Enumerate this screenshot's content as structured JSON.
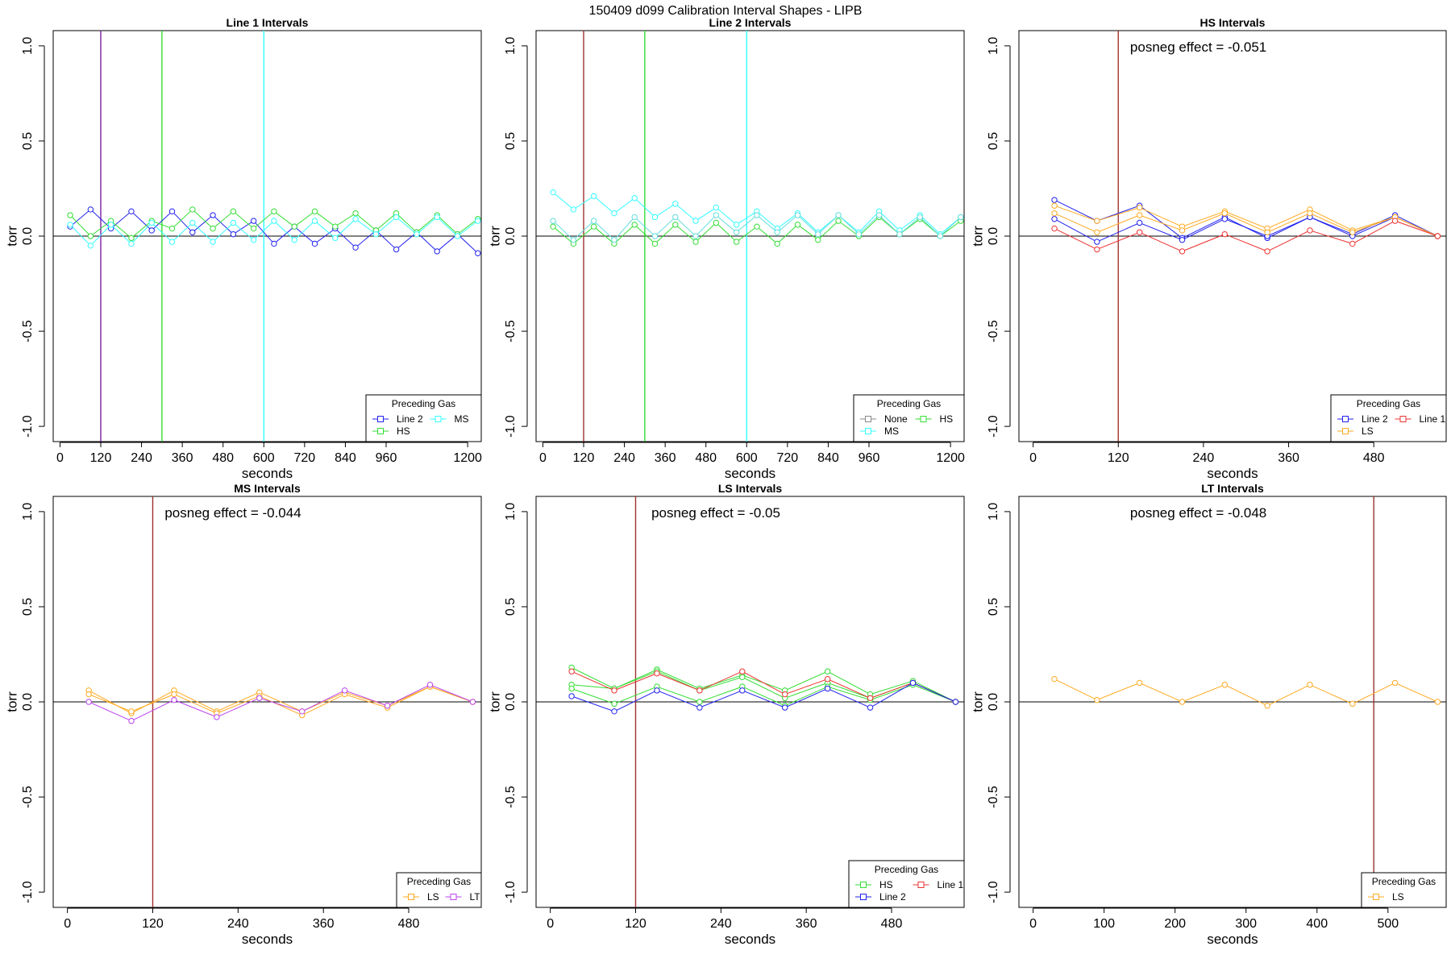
{
  "figure_title": "150409   d099   Calibration Interval Shapes - LIPB",
  "chart_data": [
    {
      "type": "line",
      "title": "Line 1 Intervals",
      "xlabel": "seconds",
      "ylabel": "torr",
      "xlim": [
        -20,
        1240
      ],
      "ylim": [
        -1.08,
        1.08
      ],
      "xticks": [
        0,
        120,
        240,
        360,
        480,
        600,
        720,
        840,
        960,
        1200
      ],
      "yticks": [
        -1.0,
        -0.5,
        0.0,
        0.5,
        1.0
      ],
      "ytick_labels": [
        "-1.0",
        "-0.5",
        "0.0",
        "0.5",
        "1.0"
      ],
      "hline": 0,
      "vlines": [
        {
          "x": 120,
          "color": "#7b1fa2"
        },
        {
          "x": 300,
          "color": "#33dd33"
        },
        {
          "x": 600,
          "color": "#33ffff"
        }
      ],
      "posneg_text": "",
      "legend": {
        "title": "Preceding Gas",
        "placement": "bottom-right",
        "entries": [
          {
            "name": "Line 2",
            "color": "#2222ee"
          },
          {
            "name": "MS",
            "color": "#33ffff"
          },
          {
            "name": "HS",
            "color": "#33dd33"
          }
        ]
      },
      "series": [
        {
          "name": "Line 2",
          "color": "#2222ee",
          "x": [
            30,
            90,
            150,
            210,
            270,
            330,
            390,
            450,
            510,
            570,
            630,
            690,
            750,
            810,
            870,
            930,
            990,
            1050,
            1110,
            1170,
            1230
          ],
          "y": [
            0.05,
            0.14,
            0.04,
            0.13,
            0.03,
            0.13,
            0.02,
            0.11,
            0.01,
            0.08,
            -0.04,
            0.05,
            -0.04,
            0.04,
            -0.06,
            0.03,
            -0.07,
            0.02,
            -0.08,
            0.01,
            -0.09
          ]
        },
        {
          "name": "HS",
          "color": "#33dd33",
          "x": [
            30,
            90,
            150,
            210,
            270,
            330,
            390,
            450,
            510,
            570,
            630,
            690,
            750,
            810,
            870,
            930,
            990,
            1050,
            1110,
            1170,
            1230
          ],
          "y": [
            0.11,
            0.0,
            0.08,
            -0.01,
            0.08,
            0.04,
            0.14,
            0.04,
            0.13,
            0.04,
            0.13,
            0.05,
            0.13,
            0.05,
            0.12,
            0.03,
            0.12,
            0.02,
            0.11,
            0.01,
            0.09
          ]
        },
        {
          "name": "MS",
          "color": "#33ffff",
          "x": [
            30,
            90,
            150,
            210,
            270,
            330,
            390,
            450,
            510,
            570,
            630,
            690,
            750,
            810,
            870,
            930,
            990,
            1050,
            1110,
            1170,
            1230
          ],
          "y": [
            0.06,
            -0.05,
            0.06,
            -0.04,
            0.07,
            -0.03,
            0.07,
            -0.03,
            0.07,
            -0.02,
            0.08,
            -0.02,
            0.08,
            -0.01,
            0.09,
            0.01,
            0.1,
            0.01,
            0.1,
            0.0,
            0.08
          ]
        }
      ]
    },
    {
      "type": "line",
      "title": "Line 2 Intervals",
      "xlabel": "seconds",
      "ylabel": "torr",
      "xlim": [
        -20,
        1240
      ],
      "ylim": [
        -1.08,
        1.08
      ],
      "xticks": [
        0,
        120,
        240,
        360,
        480,
        600,
        720,
        840,
        960,
        1200
      ],
      "yticks": [
        -1.0,
        -0.5,
        0.0,
        0.5,
        1.0
      ],
      "ytick_labels": [
        "-1.0",
        "-0.5",
        "0.0",
        "0.5",
        "1.0"
      ],
      "hline": 0,
      "vlines": [
        {
          "x": 120,
          "color": "#a03030"
        },
        {
          "x": 300,
          "color": "#33dd33"
        },
        {
          "x": 600,
          "color": "#33ffff"
        }
      ],
      "posneg_text": "",
      "legend": {
        "title": "Preceding Gas",
        "placement": "bottom-right",
        "entries": [
          {
            "name": "None",
            "color": "#888888"
          },
          {
            "name": "HS",
            "color": "#33dd33"
          },
          {
            "name": "MS",
            "color": "#33ffff"
          }
        ]
      },
      "series": [
        {
          "name": "HS",
          "color": "#33dd33",
          "x": [
            30,
            90,
            150,
            210,
            270,
            330,
            390,
            450,
            510,
            570,
            630,
            690,
            750,
            810,
            870,
            930,
            990,
            1050,
            1110,
            1170,
            1230
          ],
          "y": [
            0.05,
            -0.04,
            0.05,
            -0.04,
            0.06,
            -0.04,
            0.06,
            -0.03,
            0.07,
            -0.03,
            0.05,
            -0.04,
            0.06,
            -0.02,
            0.08,
            0.0,
            0.1,
            0.01,
            0.09,
            0.0,
            0.08
          ]
        },
        {
          "name": "MS",
          "color": "#33ffff",
          "x": [
            30,
            90,
            150,
            210,
            270,
            330,
            390,
            450,
            510,
            570,
            630,
            690,
            750,
            810,
            870,
            930,
            990,
            1050,
            1110,
            1170,
            1230
          ],
          "y": [
            0.23,
            0.14,
            0.21,
            0.12,
            0.2,
            0.1,
            0.17,
            0.08,
            0.15,
            0.06,
            0.13,
            0.04,
            0.12,
            0.02,
            0.11,
            0.02,
            0.13,
            0.03,
            0.11,
            0.01,
            0.1
          ]
        },
        {
          "name": "MS",
          "color": "#66dddd",
          "x": [
            30,
            90,
            150,
            210,
            270,
            330,
            390,
            450,
            510,
            570,
            630,
            690,
            750,
            810,
            870,
            930,
            990,
            1050,
            1110,
            1170,
            1230
          ],
          "y": [
            0.08,
            -0.02,
            0.08,
            -0.02,
            0.1,
            0.0,
            0.1,
            0.0,
            0.11,
            0.02,
            0.11,
            0.02,
            0.11,
            0.01,
            0.11,
            0.01,
            0.11,
            0.01,
            0.1,
            0.0,
            0.1
          ]
        }
      ]
    },
    {
      "type": "line",
      "title": "HS Intervals",
      "xlabel": "seconds",
      "ylabel": "torr",
      "xlim": [
        -20,
        582
      ],
      "ylim": [
        -1.08,
        1.08
      ],
      "xticks": [
        0,
        120,
        240,
        360,
        480
      ],
      "yticks": [
        -1.0,
        -0.5,
        0.0,
        0.5,
        1.0
      ],
      "ytick_labels": [
        "-1.0",
        "-0.5",
        "0.0",
        "0.5",
        "1.0"
      ],
      "hline": 0,
      "vlines": [
        {
          "x": 120,
          "color": "#a03030"
        }
      ],
      "posneg_text": "posneg effect = -0.051",
      "legend": {
        "title": "Preceding Gas",
        "placement": "bottom-right",
        "entries": [
          {
            "name": "Line 2",
            "color": "#2222ee"
          },
          {
            "name": "Line 1",
            "color": "#ee3333"
          },
          {
            "name": "LS",
            "color": "#ffaa22"
          }
        ]
      },
      "series": [
        {
          "name": "Line 2",
          "color": "#2222ee",
          "x": [
            30,
            90,
            150,
            210,
            270,
            330,
            390,
            450,
            510,
            570
          ],
          "y": [
            0.19,
            0.08,
            0.16,
            -0.01,
            0.1,
            -0.01,
            0.1,
            0.01,
            0.11,
            0.0
          ]
        },
        {
          "name": "Line 2",
          "color": "#2222ee",
          "x": [
            30,
            90,
            150,
            210,
            270,
            330,
            390,
            450,
            510,
            570
          ],
          "y": [
            0.09,
            -0.03,
            0.07,
            -0.02,
            0.09,
            0.0,
            0.1,
            0.0,
            0.1,
            0.0
          ]
        },
        {
          "name": "LS",
          "color": "#ffaa22",
          "x": [
            30,
            90,
            150,
            210,
            270,
            330,
            390,
            450,
            510,
            570
          ],
          "y": [
            0.16,
            0.08,
            0.15,
            0.05,
            0.13,
            0.04,
            0.14,
            0.03,
            0.1,
            0.0
          ]
        },
        {
          "name": "LS",
          "color": "#ffaa22",
          "x": [
            30,
            90,
            150,
            210,
            270,
            330,
            390,
            450,
            510,
            570
          ],
          "y": [
            0.12,
            0.02,
            0.11,
            0.03,
            0.12,
            0.02,
            0.12,
            0.02,
            0.1,
            0.0
          ]
        },
        {
          "name": "Line 1",
          "color": "#ee3333",
          "x": [
            30,
            90,
            150,
            210,
            270,
            330,
            390,
            450,
            510,
            570
          ],
          "y": [
            0.04,
            -0.07,
            0.02,
            -0.08,
            0.01,
            -0.08,
            0.03,
            -0.04,
            0.08,
            0.0
          ]
        }
      ]
    },
    {
      "type": "line",
      "title": "MS Intervals",
      "xlabel": "seconds",
      "ylabel": "torr",
      "xlim": [
        -20,
        582
      ],
      "ylim": [
        -1.08,
        1.08
      ],
      "xticks": [
        0,
        120,
        240,
        360,
        480
      ],
      "yticks": [
        -1.0,
        -0.5,
        0.0,
        0.5,
        1.0
      ],
      "ytick_labels": [
        "-1.0",
        "-0.5",
        "0.0",
        "0.5",
        "1.0"
      ],
      "hline": 0,
      "vlines": [
        {
          "x": 120,
          "color": "#a03030"
        }
      ],
      "posneg_text": "posneg effect = -0.044",
      "legend": {
        "title": "Preceding Gas",
        "placement": "bottom-right",
        "entries": [
          {
            "name": "LS",
            "color": "#ffaa22"
          },
          {
            "name": "LT",
            "color": "#bb44ee"
          }
        ]
      },
      "series": [
        {
          "name": "LS",
          "color": "#ffaa22",
          "x": [
            30,
            90,
            150,
            210,
            270,
            330,
            390,
            450,
            510,
            570
          ],
          "y": [
            0.06,
            -0.06,
            0.06,
            -0.05,
            0.05,
            -0.05,
            0.05,
            -0.02,
            0.08,
            0.0
          ]
        },
        {
          "name": "LS",
          "color": "#ffaa22",
          "x": [
            30,
            90,
            150,
            210,
            270,
            330,
            390,
            450,
            510,
            570
          ],
          "y": [
            0.04,
            -0.05,
            0.04,
            -0.06,
            0.03,
            -0.07,
            0.04,
            -0.03,
            0.08,
            0.0
          ]
        },
        {
          "name": "LT",
          "color": "#bb44ee",
          "x": [
            30,
            90,
            150,
            210,
            270,
            330,
            390,
            450,
            510,
            570
          ],
          "y": [
            0.0,
            -0.1,
            0.01,
            -0.08,
            0.02,
            -0.05,
            0.06,
            -0.02,
            0.09,
            0.0
          ]
        }
      ]
    },
    {
      "type": "line",
      "title": "LS Intervals",
      "xlabel": "seconds",
      "ylabel": "torr",
      "xlim": [
        -20,
        582
      ],
      "ylim": [
        -1.08,
        1.08
      ],
      "xticks": [
        0,
        120,
        240,
        360,
        480
      ],
      "yticks": [
        -1.0,
        -0.5,
        0.0,
        0.5,
        1.0
      ],
      "ytick_labels": [
        "-1.0",
        "-0.5",
        "0.0",
        "0.5",
        "1.0"
      ],
      "hline": 0,
      "vlines": [
        {
          "x": 120,
          "color": "#a03030"
        }
      ],
      "posneg_text": "posneg effect = -0.05",
      "legend": {
        "title": "Preceding Gas",
        "placement": "bottom-right",
        "entries": [
          {
            "name": "HS",
            "color": "#33dd33"
          },
          {
            "name": "Line 1",
            "color": "#ee3333"
          },
          {
            "name": "Line 2",
            "color": "#2222ee"
          }
        ]
      },
      "series": [
        {
          "name": "HS",
          "color": "#33dd33",
          "x": [
            30,
            90,
            150,
            210,
            270,
            330,
            390,
            450,
            510,
            570
          ],
          "y": [
            0.18,
            0.07,
            0.17,
            0.07,
            0.14,
            0.06,
            0.16,
            0.04,
            0.11,
            0.0
          ]
        },
        {
          "name": "HS",
          "color": "#33dd33",
          "x": [
            30,
            90,
            150,
            210,
            270,
            330,
            390,
            450,
            510,
            570
          ],
          "y": [
            0.09,
            0.07,
            0.16,
            0.06,
            0.13,
            0.02,
            0.1,
            0.02,
            0.1,
            0.0
          ]
        },
        {
          "name": "HS",
          "color": "#33dd33",
          "x": [
            30,
            90,
            150,
            210,
            270,
            330,
            390,
            450,
            510,
            570
          ],
          "y": [
            0.07,
            -0.01,
            0.08,
            0.0,
            0.08,
            -0.02,
            0.08,
            0.01,
            0.09,
            0.0
          ]
        },
        {
          "name": "Line 1",
          "color": "#ee3333",
          "x": [
            30,
            90,
            150,
            210,
            270,
            330,
            390,
            450,
            510,
            570
          ],
          "y": [
            0.16,
            0.06,
            0.15,
            0.06,
            0.16,
            0.04,
            0.12,
            0.02,
            0.1,
            0.0
          ]
        },
        {
          "name": "Line 2",
          "color": "#2222ee",
          "x": [
            30,
            90,
            150,
            210,
            270,
            330,
            390,
            450,
            510,
            570
          ],
          "y": [
            0.03,
            -0.05,
            0.06,
            -0.03,
            0.06,
            -0.03,
            0.07,
            -0.03,
            0.1,
            0.0
          ]
        }
      ]
    },
    {
      "type": "line",
      "title": "LT Intervals",
      "xlabel": "seconds",
      "ylabel": "torr",
      "xlim": [
        -20,
        582
      ],
      "ylim": [
        -1.08,
        1.08
      ],
      "xticks": [
        0,
        100,
        200,
        300,
        400,
        500
      ],
      "yticks": [
        -1.0,
        -0.5,
        0.0,
        0.5,
        1.0
      ],
      "ytick_labels": [
        "-1.0",
        "-0.5",
        "0.0",
        "0.5",
        "1.0"
      ],
      "hline": 0,
      "vlines": [
        {
          "x": 480,
          "color": "#a03030"
        }
      ],
      "posneg_text": "posneg effect = -0.048",
      "legend": {
        "title": "Preceding Gas",
        "placement": "bottom-right",
        "entries": [
          {
            "name": "LS",
            "color": "#ffaa22"
          }
        ]
      },
      "series": [
        {
          "name": "LS",
          "color": "#ffaa22",
          "x": [
            30,
            90,
            150,
            210,
            270,
            330,
            390,
            450,
            510,
            570
          ],
          "y": [
            0.12,
            0.01,
            0.1,
            0.0,
            0.09,
            -0.02,
            0.09,
            -0.01,
            0.1,
            0.0
          ]
        }
      ]
    }
  ]
}
